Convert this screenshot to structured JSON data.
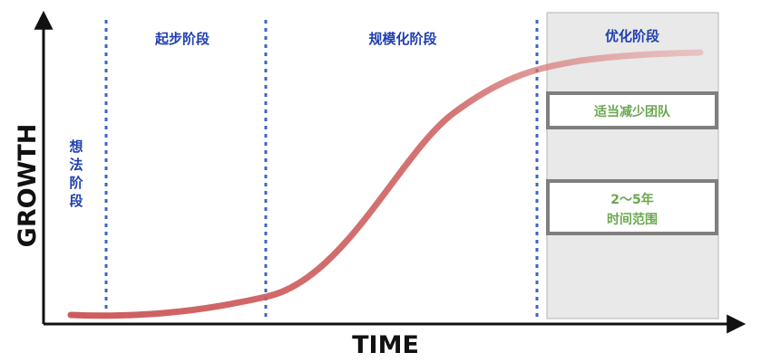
{
  "axes": {
    "x_label": "TIME",
    "y_label": "GROWTH"
  },
  "phases": {
    "idea": [
      "想",
      "法",
      "阶",
      "段"
    ],
    "startup": "起步阶段",
    "scaling": "规模化阶段",
    "optimization": "优化阶段"
  },
  "notes": {
    "reduce_team": "适当减少团队",
    "duration_line1": "2～5年",
    "duration_line2": "时间范围"
  },
  "colors": {
    "curve": "#cd5c5c",
    "divider": "#3a66c4",
    "label": "#1f3fb0",
    "note_text": "#6aa84f",
    "shade": "#e9e9e9"
  }
}
